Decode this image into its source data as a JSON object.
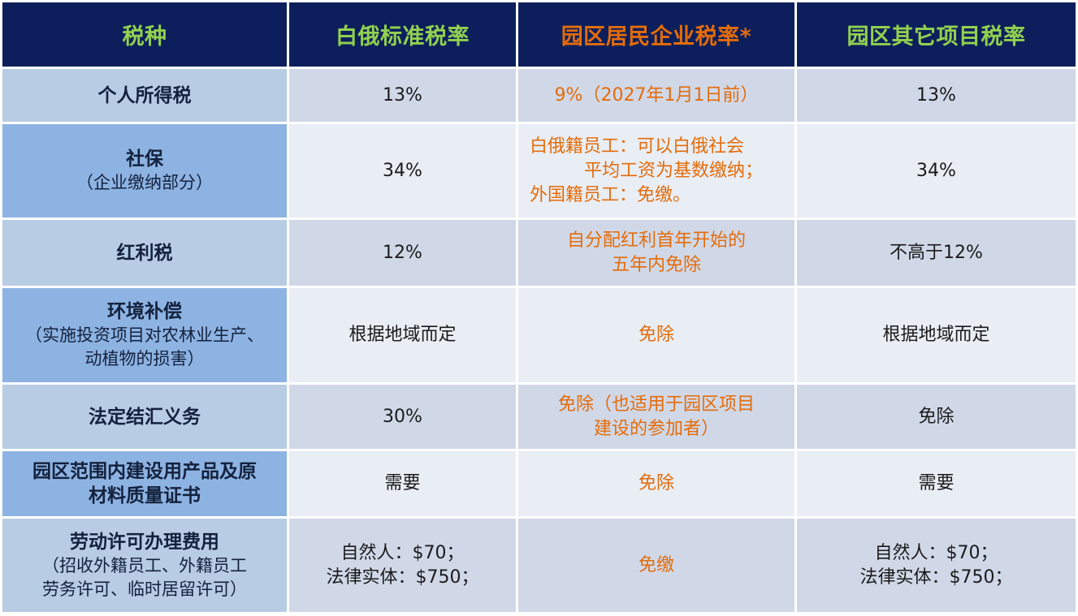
{
  "headers": {
    "tax_type": "税种",
    "belarus_standard": "白俄标准税率",
    "park_resident": "园区居民企业税率*",
    "park_other": "园区其它项目税率"
  },
  "colors": {
    "header_bg": "#0c1f5c",
    "header_green": "#92d050",
    "accent_orange": "#e46c0a",
    "key_light": "#b8cce4",
    "key_dark": "#8db3e2",
    "row_odd": "#d0d8e8",
    "row_even": "#e9edf4"
  },
  "rows": [
    {
      "tax": {
        "title": [
          "个人所得税"
        ]
      },
      "standard": [
        "13%"
      ],
      "resident": [
        "9%（2027年1月1日前）"
      ],
      "other": [
        "13%"
      ]
    },
    {
      "tax": {
        "title": [
          "社保"
        ],
        "note": [
          "（企业缴纳部分）"
        ]
      },
      "standard": [
        "34%"
      ],
      "resident": [
        "白俄籍员工：可以白俄社会",
        "平均工资为基数缴纳；",
        "外国籍员工：免缴。"
      ],
      "other": [
        "34%"
      ]
    },
    {
      "tax": {
        "title": [
          "红利税"
        ]
      },
      "standard": [
        "12%"
      ],
      "resident": [
        "自分配红利首年开始的",
        "五年内免除"
      ],
      "other": [
        "不高于12%"
      ]
    },
    {
      "tax": {
        "title": [
          "环境补偿"
        ],
        "note": [
          "（实施投资项目对农林业生产、",
          "动植物的损害）"
        ]
      },
      "standard": [
        "根据地域而定"
      ],
      "resident": [
        "免除"
      ],
      "other": [
        "根据地域而定"
      ]
    },
    {
      "tax": {
        "title": [
          "法定结汇义务"
        ]
      },
      "standard": [
        "30%"
      ],
      "resident": [
        "免除（也适用于园区项目",
        "建设的参加者）"
      ],
      "other": [
        "免除"
      ]
    },
    {
      "tax": {
        "title": [
          "园区范围内建设用产品及原",
          "材料质量证书"
        ]
      },
      "standard": [
        "需要"
      ],
      "resident": [
        "免除"
      ],
      "other": [
        "需要"
      ]
    },
    {
      "tax": {
        "title": [
          "劳动许可办理费用"
        ],
        "note": [
          "（招收外籍员工、外籍员工",
          "劳务许可、临时居留许可）"
        ]
      },
      "standard": [
        "自然人：$70；",
        "法律实体：$750；"
      ],
      "resident": [
        "免缴"
      ],
      "other": [
        "自然人：$70；",
        "法律实体：$750；"
      ]
    }
  ]
}
